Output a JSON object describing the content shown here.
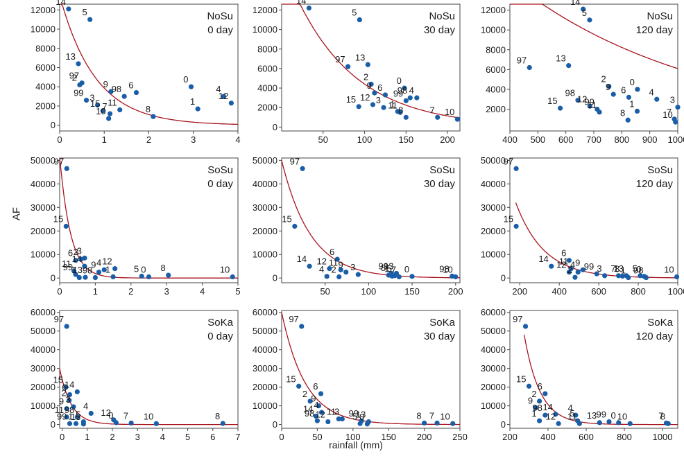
{
  "figure": {
    "ylabel": "AF",
    "xlabel": "rainfall (mm)"
  },
  "chart_data": [
    {
      "type": "scatter",
      "site": "NoSu",
      "period": "0 day",
      "xlim": [
        0,
        4
      ],
      "xticks": [
        0,
        1,
        2,
        3,
        4
      ],
      "ylim": [
        -600,
        12600
      ],
      "yticks": [
        0,
        2000,
        4000,
        6000,
        8000,
        10000,
        12000
      ],
      "points": [
        {
          "label": "14",
          "x": 0.2,
          "y": 12100
        },
        {
          "label": "5",
          "x": 0.68,
          "y": 11000
        },
        {
          "label": "13",
          "x": 0.42,
          "y": 6400
        },
        {
          "label": "97",
          "x": 0.5,
          "y": 4400
        },
        {
          "label": "2",
          "x": 0.45,
          "y": 4200
        },
        {
          "label": "99",
          "x": 0.6,
          "y": 2600
        },
        {
          "label": "3",
          "x": 0.85,
          "y": 2100
        },
        {
          "label": "15",
          "x": 0.97,
          "y": 1500
        },
        {
          "label": "7",
          "x": 1.13,
          "y": 1200
        },
        {
          "label": "10",
          "x": 1.1,
          "y": 700
        },
        {
          "label": "11",
          "x": 1.35,
          "y": 1600
        },
        {
          "label": "9",
          "x": 1.15,
          "y": 3500
        },
        {
          "label": "98",
          "x": 1.45,
          "y": 3000
        },
        {
          "label": "6",
          "x": 1.72,
          "y": 3400
        },
        {
          "label": "8",
          "x": 2.1,
          "y": 900
        },
        {
          "label": "0",
          "x": 2.95,
          "y": 4000
        },
        {
          "label": "1",
          "x": 3.1,
          "y": 1700
        },
        {
          "label": "4",
          "x": 3.68,
          "y": 3000
        },
        {
          "label": "12",
          "x": 3.85,
          "y": 2300
        }
      ],
      "fit": {
        "a": 13500,
        "b": 1.25
      }
    },
    {
      "type": "scatter",
      "site": "NoSu",
      "period": "30 day",
      "xlim": [
        0,
        215
      ],
      "xticks": [
        50,
        100,
        150,
        200
      ],
      "ylim": [
        -400,
        12600
      ],
      "yticks": [
        0,
        2000,
        4000,
        6000,
        8000,
        10000,
        12000
      ],
      "points": [
        {
          "label": "14",
          "x": 33,
          "y": 12200
        },
        {
          "label": "5",
          "x": 94,
          "y": 11000
        },
        {
          "label": "97",
          "x": 80,
          "y": 6200
        },
        {
          "label": "13",
          "x": 104,
          "y": 6400
        },
        {
          "label": "2",
          "x": 108,
          "y": 4400
        },
        {
          "label": "9",
          "x": 112,
          "y": 3500
        },
        {
          "label": "6",
          "x": 125,
          "y": 3300
        },
        {
          "label": "15",
          "x": 93,
          "y": 2100
        },
        {
          "label": "12",
          "x": 110,
          "y": 2300
        },
        {
          "label": "3",
          "x": 123,
          "y": 2000
        },
        {
          "label": "1",
          "x": 140,
          "y": 1600
        },
        {
          "label": "11",
          "x": 143,
          "y": 1500
        },
        {
          "label": "0",
          "x": 148,
          "y": 4000
        },
        {
          "label": "99",
          "x": 150,
          "y": 2700
        },
        {
          "label": "98",
          "x": 155,
          "y": 3000
        },
        {
          "label": "4",
          "x": 163,
          "y": 3000
        },
        {
          "label": "8",
          "x": 150,
          "y": 1000
        },
        {
          "label": "7",
          "x": 188,
          "y": 1000
        },
        {
          "label": "10",
          "x": 212,
          "y": 800
        }
      ],
      "fit": {
        "a": 17000,
        "b": 0.0135
      }
    },
    {
      "type": "scatter",
      "site": "NoSu",
      "period": "120 day",
      "xlim": [
        400,
        1000
      ],
      "xticks": [
        400,
        500,
        600,
        700,
        800,
        900,
        1000
      ],
      "ylim": [
        -200,
        12600
      ],
      "yticks": [
        2000,
        4000,
        6000,
        8000,
        10000,
        12000
      ],
      "points": [
        {
          "label": "14",
          "x": 662,
          "y": 12100
        },
        {
          "label": "5",
          "x": 685,
          "y": 11000
        },
        {
          "label": "97",
          "x": 470,
          "y": 6200
        },
        {
          "label": "13",
          "x": 610,
          "y": 6400
        },
        {
          "label": "15",
          "x": 580,
          "y": 2100
        },
        {
          "label": "98",
          "x": 643,
          "y": 2900
        },
        {
          "label": "12",
          "x": 686,
          "y": 2300
        },
        {
          "label": "99",
          "x": 712,
          "y": 2000
        },
        {
          "label": "11",
          "x": 720,
          "y": 1700
        },
        {
          "label": "2",
          "x": 754,
          "y": 4300
        },
        {
          "label": "9",
          "x": 770,
          "y": 3500
        },
        {
          "label": "6",
          "x": 825,
          "y": 3200
        },
        {
          "label": "0",
          "x": 856,
          "y": 4000
        },
        {
          "label": "1",
          "x": 855,
          "y": 1800
        },
        {
          "label": "8",
          "x": 822,
          "y": 900
        },
        {
          "label": "4",
          "x": 925,
          "y": 3000
        },
        {
          "label": "7",
          "x": 988,
          "y": 1000
        },
        {
          "label": "10",
          "x": 992,
          "y": 700
        },
        {
          "label": "3",
          "x": 1000,
          "y": 2200
        }
      ],
      "fit": {
        "a": 15000,
        "b": 0.0015
      }
    },
    {
      "type": "scatter",
      "site": "SoSu",
      "period": "0 day",
      "xlim": [
        0,
        5
      ],
      "xticks": [
        0,
        1,
        2,
        3,
        4,
        5
      ],
      "ylim": [
        -2000,
        51000
      ],
      "yticks": [
        0,
        10000,
        20000,
        30000,
        40000,
        50000
      ],
      "points": [
        {
          "label": "97",
          "x": 0.2,
          "y": 46500
        },
        {
          "label": "15",
          "x": 0.18,
          "y": 22000
        },
        {
          "label": "6",
          "x": 0.45,
          "y": 7500
        },
        {
          "label": "2",
          "x": 0.6,
          "y": 8000
        },
        {
          "label": "3",
          "x": 0.7,
          "y": 8500
        },
        {
          "label": "11",
          "x": 0.4,
          "y": 3000
        },
        {
          "label": "14",
          "x": 0.7,
          "y": 5000
        },
        {
          "label": "9",
          "x": 1.1,
          "y": 2500
        },
        {
          "label": "4",
          "x": 1.25,
          "y": 3500
        },
        {
          "label": "12",
          "x": 1.55,
          "y": 4000
        },
        {
          "label": "1",
          "x": 1.5,
          "y": 500
        },
        {
          "label": "99",
          "x": 0.45,
          "y": 1500
        },
        {
          "label": "7",
          "x": 0.55,
          "y": 200
        },
        {
          "label": "13",
          "x": 0.72,
          "y": 300
        },
        {
          "label": "98",
          "x": 1.0,
          "y": 200
        },
        {
          "label": "5",
          "x": 2.3,
          "y": 800
        },
        {
          "label": "0",
          "x": 2.5,
          "y": 500
        },
        {
          "label": "8",
          "x": 3.05,
          "y": 1200
        },
        {
          "label": "10",
          "x": 4.85,
          "y": 500
        }
      ],
      "fit": {
        "a": 52000,
        "b": 3.3
      }
    },
    {
      "type": "scatter",
      "site": "SoSu",
      "period": "30 day",
      "xlim": [
        0,
        205
      ],
      "xticks": [
        50,
        100,
        150,
        200
      ],
      "ylim": [
        -2000,
        51000
      ],
      "yticks": [
        0,
        10000,
        20000,
        30000,
        40000,
        50000
      ],
      "points": [
        {
          "label": "97",
          "x": 24,
          "y": 46500
        },
        {
          "label": "15",
          "x": 15,
          "y": 22000
        },
        {
          "label": "14",
          "x": 32,
          "y": 5000
        },
        {
          "label": "6",
          "x": 64,
          "y": 8000
        },
        {
          "label": "12",
          "x": 55,
          "y": 4000
        },
        {
          "label": "11",
          "x": 68,
          "y": 3500
        },
        {
          "label": "9",
          "x": 74,
          "y": 2500
        },
        {
          "label": "3",
          "x": 88,
          "y": 1500
        },
        {
          "label": "4",
          "x": 52,
          "y": 700
        },
        {
          "label": "2",
          "x": 66,
          "y": 500
        },
        {
          "label": "99",
          "x": 126,
          "y": 2000
        },
        {
          "label": "13",
          "x": 132,
          "y": 2000
        },
        {
          "label": "8",
          "x": 123,
          "y": 1200
        },
        {
          "label": "1",
          "x": 127,
          "y": 800
        },
        {
          "label": "5",
          "x": 130,
          "y": 1000
        },
        {
          "label": "7",
          "x": 135,
          "y": 500
        },
        {
          "label": "0",
          "x": 150,
          "y": 700
        },
        {
          "label": "98",
          "x": 196,
          "y": 800
        },
        {
          "label": "10",
          "x": 200,
          "y": 500
        }
      ],
      "fit": {
        "a": 50000,
        "b": 0.03
      }
    },
    {
      "type": "scatter",
      "site": "SoSu",
      "period": "120 day",
      "xlim": [
        150,
        1000
      ],
      "xticks": [
        200,
        400,
        600,
        800,
        1000
      ],
      "ylim": [
        -2000,
        51000
      ],
      "yticks": [
        0,
        10000,
        20000,
        30000,
        40000,
        50000
      ],
      "points": [
        {
          "label": "97",
          "x": 182,
          "y": 46500
        },
        {
          "label": "15",
          "x": 182,
          "y": 22000
        },
        {
          "label": "14",
          "x": 360,
          "y": 5000
        },
        {
          "label": "6",
          "x": 450,
          "y": 7500
        },
        {
          "label": "12",
          "x": 450,
          "y": 2500
        },
        {
          "label": "11",
          "x": 460,
          "y": 4000
        },
        {
          "label": "4",
          "x": 495,
          "y": 2500
        },
        {
          "label": "9",
          "x": 520,
          "y": 3500
        },
        {
          "label": "2",
          "x": 480,
          "y": 300
        },
        {
          "label": "99",
          "x": 590,
          "y": 1800
        },
        {
          "label": "3",
          "x": 630,
          "y": 1000
        },
        {
          "label": "7",
          "x": 700,
          "y": 1000
        },
        {
          "label": "8",
          "x": 720,
          "y": 800
        },
        {
          "label": "13",
          "x": 740,
          "y": 1000
        },
        {
          "label": "1",
          "x": 750,
          "y": 200
        },
        {
          "label": "5",
          "x": 810,
          "y": 1000
        },
        {
          "label": "0",
          "x": 830,
          "y": 700
        },
        {
          "label": "98",
          "x": 840,
          "y": 200
        },
        {
          "label": "10",
          "x": 995,
          "y": 500
        }
      ],
      "fit": {
        "a": 32000,
        "b": 0.007,
        "x0": 180
      }
    },
    {
      "type": "scatter",
      "site": "SoKa",
      "period": "0 day",
      "xlim": [
        -0.1,
        7
      ],
      "xticks": [
        0,
        1,
        2,
        3,
        4,
        5,
        6,
        7
      ],
      "ylim": [
        -2000,
        61000
      ],
      "yticks": [
        0,
        10000,
        20000,
        30000,
        40000,
        50000,
        60000
      ],
      "points": [
        {
          "label": "97",
          "x": 0.18,
          "y": 52500
        },
        {
          "label": "15",
          "x": 0.15,
          "y": 20000
        },
        {
          "label": "6",
          "x": 0.3,
          "y": 16000
        },
        {
          "label": "14",
          "x": 0.6,
          "y": 17500
        },
        {
          "label": "2",
          "x": 0.28,
          "y": 13000
        },
        {
          "label": "3",
          "x": 0.45,
          "y": 9500
        },
        {
          "label": "9",
          "x": 0.18,
          "y": 8500
        },
        {
          "label": "11",
          "x": 0.18,
          "y": 4000
        },
        {
          "label": "4",
          "x": 1.15,
          "y": 6000
        },
        {
          "label": "98",
          "x": 0.6,
          "y": 4000
        },
        {
          "label": "99",
          "x": 0.3,
          "y": 500
        },
        {
          "label": "1",
          "x": 0.55,
          "y": 500
        },
        {
          "label": "5",
          "x": 0.85,
          "y": 1500
        },
        {
          "label": "13",
          "x": 0.85,
          "y": 300
        },
        {
          "label": "12",
          "x": 2.05,
          "y": 2500
        },
        {
          "label": "0",
          "x": 2.15,
          "y": 1000
        },
        {
          "label": "7",
          "x": 2.75,
          "y": 800
        },
        {
          "label": "10",
          "x": 3.75,
          "y": 500
        },
        {
          "label": "8",
          "x": 6.4,
          "y": 600
        }
      ],
      "fit": {
        "a": 30000,
        "b": 2.2
      }
    },
    {
      "type": "scatter",
      "site": "SoKa",
      "period": "30 day",
      "xlim": [
        0,
        250
      ],
      "xticks": [
        0,
        50,
        100,
        150,
        200,
        250
      ],
      "ylim": [
        -2000,
        61000
      ],
      "yticks": [
        0,
        10000,
        20000,
        30000,
        40000,
        50000,
        60000
      ],
      "points": [
        {
          "label": "97",
          "x": 28,
          "y": 52500
        },
        {
          "label": "15",
          "x": 24,
          "y": 20500
        },
        {
          "label": "6",
          "x": 55,
          "y": 16500
        },
        {
          "label": "2",
          "x": 40,
          "y": 12500
        },
        {
          "label": "9",
          "x": 52,
          "y": 10000
        },
        {
          "label": "4",
          "x": 56,
          "y": 6500
        },
        {
          "label": "14",
          "x": 48,
          "y": 4500
        },
        {
          "label": "98",
          "x": 50,
          "y": 2000
        },
        {
          "label": "12",
          "x": 65,
          "y": 1500
        },
        {
          "label": "11",
          "x": 80,
          "y": 3000
        },
        {
          "label": "3",
          "x": 85,
          "y": 3000
        },
        {
          "label": "99",
          "x": 112,
          "y": 2000
        },
        {
          "label": "13",
          "x": 122,
          "y": 1500
        },
        {
          "label": "5",
          "x": 110,
          "y": 500
        },
        {
          "label": "0",
          "x": 120,
          "y": 300
        },
        {
          "label": "8",
          "x": 200,
          "y": 800
        },
        {
          "label": "7",
          "x": 218,
          "y": 800
        },
        {
          "label": "10",
          "x": 240,
          "y": 500
        }
      ],
      "fit": {
        "a": 60000,
        "b": 0.03
      }
    },
    {
      "type": "scatter",
      "site": "SoKa",
      "period": "120 day",
      "xlim": [
        200,
        1080
      ],
      "xticks": [
        200,
        400,
        600,
        800,
        1000
      ],
      "ylim": [
        -2000,
        61000
      ],
      "yticks": [
        0,
        10000,
        20000,
        30000,
        40000,
        50000,
        60000
      ],
      "points": [
        {
          "label": "97",
          "x": 282,
          "y": 52500
        },
        {
          "label": "15",
          "x": 300,
          "y": 20500
        },
        {
          "label": "6",
          "x": 385,
          "y": 16500
        },
        {
          "label": "2",
          "x": 355,
          "y": 12500
        },
        {
          "label": "9",
          "x": 335,
          "y": 9000
        },
        {
          "label": "98",
          "x": 385,
          "y": 5000
        },
        {
          "label": "1",
          "x": 355,
          "y": 2000
        },
        {
          "label": "14",
          "x": 440,
          "y": 5500
        },
        {
          "label": "4",
          "x": 545,
          "y": 5000
        },
        {
          "label": "5",
          "x": 555,
          "y": 2000
        },
        {
          "label": "12",
          "x": 455,
          "y": 500
        },
        {
          "label": "11",
          "x": 565,
          "y": 500
        },
        {
          "label": "13",
          "x": 670,
          "y": 1000
        },
        {
          "label": "99",
          "x": 720,
          "y": 1500
        },
        {
          "label": "0",
          "x": 770,
          "y": 1000
        },
        {
          "label": "10",
          "x": 830,
          "y": 500
        },
        {
          "label": "7",
          "x": 1020,
          "y": 800
        },
        {
          "label": "8",
          "x": 1030,
          "y": 500
        }
      ],
      "fit": {
        "a": 48000,
        "b": 0.012,
        "x0": 275
      }
    }
  ]
}
